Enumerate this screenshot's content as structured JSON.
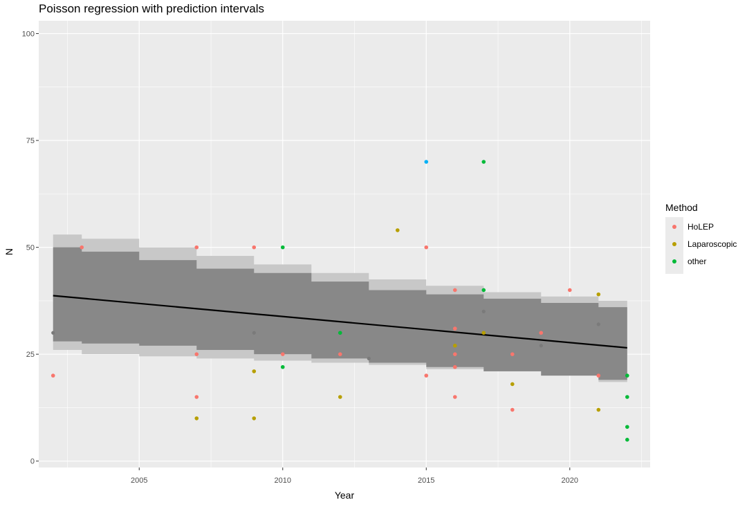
{
  "chart_data": {
    "type": "scatter",
    "title": "Poisson regression with prediction intervals",
    "xlabel": "Year",
    "ylabel": "N",
    "xlim": [
      2001.5,
      2022.8
    ],
    "ylim": [
      -1.5,
      103
    ],
    "x_ticks": [
      2005,
      2010,
      2015,
      2020
    ],
    "y_ticks": [
      0,
      25,
      50,
      75,
      100
    ],
    "grid": true,
    "legend": {
      "title": "Method",
      "position": "right"
    },
    "series": [
      {
        "name": "HoLEP",
        "color": "#F8766D",
        "points": [
          [
            2002,
            20
          ],
          [
            2003,
            50
          ],
          [
            2007,
            50
          ],
          [
            2007,
            25
          ],
          [
            2007,
            15
          ],
          [
            2009,
            50
          ],
          [
            2010,
            25
          ],
          [
            2012,
            25
          ],
          [
            2015,
            50
          ],
          [
            2015,
            20
          ],
          [
            2016,
            40
          ],
          [
            2016,
            31
          ],
          [
            2016,
            25
          ],
          [
            2016,
            22
          ],
          [
            2016,
            15
          ],
          [
            2018,
            25
          ],
          [
            2018,
            12
          ],
          [
            2019,
            30
          ],
          [
            2020,
            40
          ],
          [
            2021,
            20
          ]
        ]
      },
      {
        "name": "Laparoscopic",
        "color": "#B79F00",
        "points": [
          [
            2007,
            10
          ],
          [
            2009,
            21
          ],
          [
            2009,
            10
          ],
          [
            2012,
            15
          ],
          [
            2014,
            54
          ],
          [
            2016,
            27
          ],
          [
            2017,
            30
          ],
          [
            2018,
            18
          ],
          [
            2021,
            39
          ],
          [
            2021,
            12
          ]
        ]
      },
      {
        "name": "other",
        "color": "#00BA38",
        "points": [
          [
            2010,
            50
          ],
          [
            2010,
            22
          ],
          [
            2012,
            30
          ],
          [
            2017,
            40
          ],
          [
            2017,
            70
          ],
          [
            2022,
            20
          ],
          [
            2022,
            15
          ],
          [
            2022,
            8
          ],
          [
            2022,
            5
          ]
        ]
      },
      {
        "color": "#00B0F6",
        "show_in_legend": false,
        "points": [
          [
            2015,
            70
          ]
        ]
      }
    ],
    "fit_line": [
      [
        2002,
        38.7
      ],
      [
        2022,
        26.5
      ]
    ],
    "outer_band": {
      "color": "#C8C8C8",
      "points": [
        [
          2002,
          26,
          53
        ],
        [
          2003,
          25,
          52
        ],
        [
          2005,
          24.5,
          50
        ],
        [
          2007,
          24,
          48
        ],
        [
          2009,
          23.5,
          46
        ],
        [
          2011,
          23,
          44
        ],
        [
          2013,
          22.5,
          42.5
        ],
        [
          2015,
          21.5,
          41
        ],
        [
          2017,
          21,
          39.5
        ],
        [
          2019,
          20,
          38.5
        ],
        [
          2021,
          18.5,
          37.5
        ],
        [
          2022,
          18,
          37
        ]
      ]
    },
    "inner_band": {
      "color": "#888888",
      "points": [
        [
          2002,
          28,
          50
        ],
        [
          2003,
          27.5,
          49
        ],
        [
          2005,
          27,
          47
        ],
        [
          2007,
          26,
          45
        ],
        [
          2009,
          25,
          44
        ],
        [
          2011,
          24,
          42
        ],
        [
          2013,
          23,
          40
        ],
        [
          2015,
          22,
          39
        ],
        [
          2017,
          21,
          38
        ],
        [
          2019,
          20,
          37
        ],
        [
          2021,
          19,
          36
        ],
        [
          2022,
          18,
          35
        ]
      ]
    },
    "faint_points": [
      [
        2002,
        30
      ],
      [
        2009,
        30
      ],
      [
        2013,
        24
      ],
      [
        2017,
        35
      ],
      [
        2019,
        27
      ],
      [
        2021,
        32
      ]
    ]
  }
}
